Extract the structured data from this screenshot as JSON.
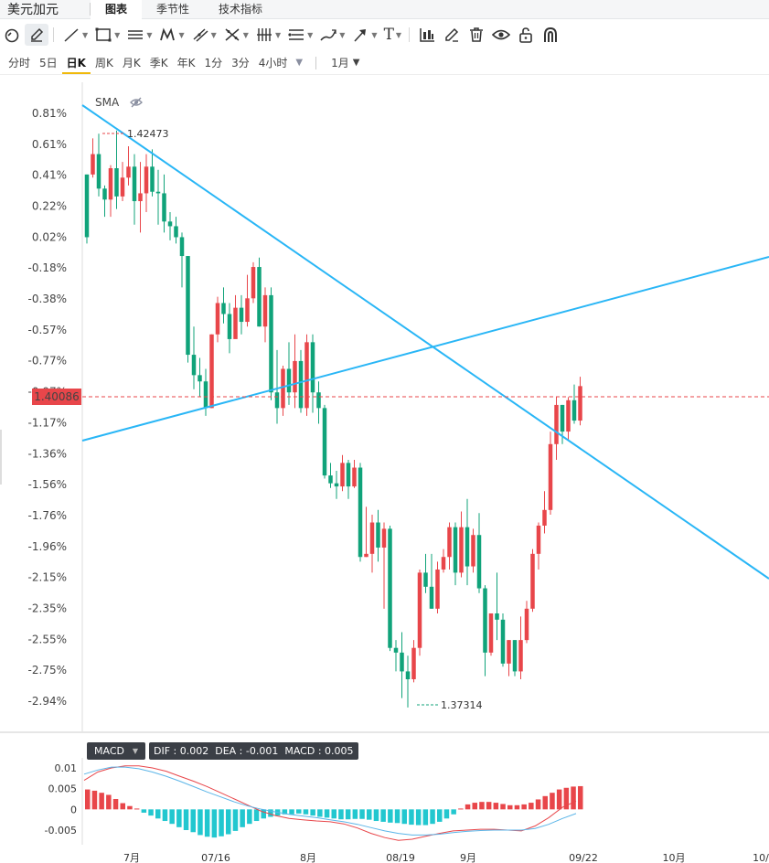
{
  "topbar": {
    "symbol": "美元加元",
    "tabs": [
      {
        "label": "图表",
        "active": true
      },
      {
        "label": "季节性",
        "active": false
      },
      {
        "label": "技术指标",
        "active": false
      }
    ]
  },
  "toolbar": {
    "tools": [
      "magnet-icon",
      "pencil-icon",
      "trend-line-icon",
      "rectangle-icon",
      "horizontal-lines-icon",
      "pattern-icon",
      "channel-icon",
      "fib-icon",
      "vertical-lines-icon",
      "parallel-lines-icon",
      "brush-icon",
      "arrow-icon",
      "text-icon",
      "chart-settings-icon",
      "edit-icon",
      "trash-icon",
      "eye-icon",
      "lock-icon",
      "magnet-u-icon"
    ],
    "text_tool_label": "T"
  },
  "periods": {
    "items": [
      {
        "label": "分时",
        "active": false
      },
      {
        "label": "5日",
        "active": false
      },
      {
        "label": "日K",
        "active": true
      },
      {
        "label": "周K",
        "active": false
      },
      {
        "label": "月K",
        "active": false
      },
      {
        "label": "季K",
        "active": false
      },
      {
        "label": "年K",
        "active": false
      },
      {
        "label": "1分",
        "active": false
      },
      {
        "label": "3分",
        "active": false
      },
      {
        "label": "4小时",
        "active": false
      }
    ],
    "more_caret": "▼",
    "range_label": "1月",
    "range_caret": "▼"
  },
  "chart_data": {
    "type": "candlestick",
    "indicator_label": "SMA",
    "y_ticks": [
      "0.81%",
      "0.61%",
      "0.41%",
      "0.22%",
      "0.02%",
      "-0.18%",
      "-0.38%",
      "-0.57%",
      "-0.77%",
      "-0.97%",
      "-1.17%",
      "-1.36%",
      "-1.56%",
      "-1.76%",
      "-1.96%",
      "-2.15%",
      "-2.35%",
      "-2.55%",
      "-2.75%",
      "-2.94%"
    ],
    "x_ticks": [
      "7月",
      "07/16",
      "8月",
      "08/19",
      "9月",
      "09/22",
      "10月",
      "10/"
    ],
    "current_price": "1.40086",
    "high_label": "1.42473",
    "low_label": "1.37314",
    "colors": {
      "up": "#e8464a",
      "down": "#10a37a",
      "trendline": "#29b6f6",
      "price_line": "#e8464a"
    },
    "candles": [
      [
        0.42,
        0.02,
        0.42,
        -0.02
      ],
      [
        0.42,
        0.55,
        0.65,
        0.4
      ],
      [
        0.55,
        0.33,
        0.68,
        0.28
      ],
      [
        0.33,
        0.26,
        0.35,
        0.15
      ],
      [
        0.26,
        0.46,
        0.48,
        0.15
      ],
      [
        0.46,
        0.28,
        0.7,
        0.2
      ],
      [
        0.28,
        0.4,
        0.5,
        0.25
      ],
      [
        0.4,
        0.47,
        0.6,
        0.35
      ],
      [
        0.47,
        0.25,
        0.55,
        0.1
      ],
      [
        0.25,
        0.3,
        0.5,
        0.05
      ],
      [
        0.3,
        0.47,
        0.55,
        0.18
      ],
      [
        0.47,
        0.31,
        0.58,
        0.28
      ],
      [
        0.31,
        0.3,
        0.45,
        0.1
      ],
      [
        0.3,
        0.12,
        0.42,
        0.05
      ],
      [
        0.12,
        0.09,
        0.18,
        0.0
      ],
      [
        0.09,
        0.02,
        0.15,
        -0.02
      ],
      [
        0.02,
        -0.1,
        0.05,
        -0.3
      ],
      [
        -0.1,
        -0.73,
        -0.1,
        -0.78
      ],
      [
        -0.73,
        -0.86,
        -0.55,
        -0.95
      ],
      [
        -0.86,
        -0.9,
        -0.75,
        -1.0
      ],
      [
        -0.9,
        -1.07,
        -0.82,
        -1.12
      ],
      [
        -1.07,
        -0.6,
        -0.6,
        -1.07
      ],
      [
        -0.6,
        -0.4,
        -0.36,
        -0.65
      ],
      [
        -0.4,
        -0.47,
        -0.3,
        -0.53
      ],
      [
        -0.47,
        -0.63,
        -0.4,
        -0.72
      ],
      [
        -0.63,
        -0.43,
        -0.35,
        -0.6
      ],
      [
        -0.43,
        -0.52,
        -0.35,
        -0.6
      ],
      [
        -0.52,
        -0.37,
        -0.22,
        -0.55
      ],
      [
        -0.37,
        -0.17,
        -0.14,
        -0.4
      ],
      [
        -0.17,
        -0.55,
        -0.11,
        -0.55
      ],
      [
        -0.55,
        -0.35,
        -0.3,
        -0.65
      ],
      [
        -0.35,
        -0.97,
        -0.3,
        -1.02
      ],
      [
        -0.97,
        -1.07,
        -0.7,
        -1.17
      ],
      [
        -1.07,
        -0.82,
        -0.8,
        -1.12
      ],
      [
        -0.82,
        -0.97,
        -0.65,
        -1.05
      ],
      [
        -0.97,
        -0.77,
        -0.6,
        -1.07
      ],
      [
        -0.77,
        -1.07,
        -0.7,
        -1.1
      ],
      [
        -1.07,
        -0.65,
        -0.6,
        -1.12
      ],
      [
        -0.65,
        -0.97,
        -0.6,
        -1.1
      ],
      [
        -0.97,
        -1.07,
        -0.9,
        -1.17
      ],
      [
        -1.07,
        -1.5,
        -1.05,
        -1.52
      ],
      [
        -1.5,
        -1.55,
        -1.42,
        -1.58
      ],
      [
        -1.55,
        -1.57,
        -1.47,
        -1.65
      ],
      [
        -1.57,
        -1.42,
        -1.37,
        -1.6
      ],
      [
        -1.42,
        -1.57,
        -1.4,
        -1.65
      ],
      [
        -1.57,
        -1.45,
        -1.4,
        -1.58
      ],
      [
        -1.45,
        -2.02,
        -1.42,
        -2.05
      ],
      [
        -2.02,
        -2.0,
        -1.7,
        -2.02
      ],
      [
        -2.0,
        -1.8,
        -1.75,
        -2.12
      ],
      [
        -1.8,
        -1.96,
        -1.72,
        -2.05
      ],
      [
        -1.96,
        -1.84,
        -1.8,
        -2.35
      ],
      [
        -1.84,
        -2.6,
        -1.82,
        -2.62
      ],
      [
        -2.6,
        -2.63,
        -2.55,
        -2.75
      ],
      [
        -2.63,
        -2.75,
        -2.5,
        -2.92
      ],
      [
        -2.75,
        -2.8,
        -2.65,
        -2.98
      ],
      [
        -2.8,
        -2.6,
        -2.55,
        -2.82
      ],
      [
        -2.6,
        -2.12,
        -2.1,
        -2.65
      ],
      [
        -2.12,
        -2.21,
        -2.0,
        -2.25
      ],
      [
        -2.21,
        -2.35,
        -2.0,
        -2.35
      ],
      [
        -2.35,
        -2.1,
        -2.05,
        -2.38
      ],
      [
        -2.1,
        -2.02,
        -1.97,
        -2.12
      ],
      [
        -2.02,
        -1.83,
        -1.8,
        -2.1
      ],
      [
        -1.83,
        -2.12,
        -1.8,
        -2.2
      ],
      [
        -2.12,
        -1.83,
        -1.73,
        -2.15
      ],
      [
        -1.83,
        -2.08,
        -1.65,
        -2.2
      ],
      [
        -2.08,
        -1.88,
        -1.84,
        -2.12
      ],
      [
        -1.88,
        -2.22,
        -1.74,
        -2.25
      ],
      [
        -2.22,
        -2.63,
        -2.2,
        -2.78
      ],
      [
        -2.63,
        -2.38,
        -2.38,
        -2.65
      ],
      [
        -2.38,
        -2.42,
        -2.12,
        -2.55
      ],
      [
        -2.42,
        -2.7,
        -2.38,
        -2.72
      ],
      [
        -2.7,
        -2.55,
        -2.55,
        -2.78
      ],
      [
        -2.55,
        -2.75,
        -2.55,
        -2.78
      ],
      [
        -2.75,
        -2.55,
        -2.4,
        -2.8
      ],
      [
        -2.55,
        -2.35,
        -2.3,
        -2.57
      ],
      [
        -2.35,
        -2.0,
        -1.97,
        -2.37
      ],
      [
        -2.0,
        -1.82,
        -1.8,
        -2.1
      ],
      [
        -1.82,
        -1.72,
        -1.6,
        -1.87
      ],
      [
        -1.72,
        -1.3,
        -1.22,
        -1.75
      ],
      [
        -1.3,
        -1.05,
        -1.0,
        -1.4
      ],
      [
        -1.05,
        -1.22,
        -1.05,
        -1.3
      ],
      [
        -1.22,
        -1.02,
        -1.0,
        -1.27
      ],
      [
        -1.02,
        -1.15,
        -0.92,
        -1.17
      ],
      [
        -1.15,
        -0.93,
        -0.87,
        -1.18
      ]
    ],
    "macd": {
      "dif_label": "DIF : 0.002",
      "dea_label": "DEA : -0.001",
      "macd_label": "MACD : 0.005",
      "y_ticks": [
        "0.01",
        "0.005",
        "0",
        "-0.005"
      ],
      "indicator_name": "MACD",
      "hist": [
        0.0048,
        0.0045,
        0.004,
        0.0035,
        0.0025,
        0.0015,
        0.0008,
        0.0002,
        -0.0008,
        -0.0015,
        -0.0022,
        -0.0028,
        -0.0035,
        -0.0043,
        -0.005,
        -0.0055,
        -0.0062,
        -0.0066,
        -0.0068,
        -0.0065,
        -0.006,
        -0.0052,
        -0.0043,
        -0.0035,
        -0.0028,
        -0.0022,
        -0.0018,
        -0.0015,
        -0.0012,
        -0.0012,
        -0.001,
        -0.0012,
        -0.0015,
        -0.0018,
        -0.002,
        -0.0022,
        -0.0024,
        -0.0024,
        -0.0023,
        -0.0023,
        -0.0025,
        -0.0028,
        -0.003,
        -0.0032,
        -0.0033,
        -0.0035,
        -0.0037,
        -0.0038,
        -0.0038,
        -0.0035,
        -0.003,
        -0.0022,
        -0.0012,
        0.0002,
        0.0012,
        0.0016,
        0.0018,
        0.0018,
        0.0016,
        0.0013,
        0.001,
        0.001,
        0.0012,
        0.0016,
        0.0024,
        0.0032,
        0.004,
        0.0048,
        0.0052,
        0.0055,
        0.0056
      ],
      "dif": [
        0.007,
        0.009,
        0.01,
        0.0105,
        0.0105,
        0.01,
        0.0092,
        0.008,
        0.0068,
        0.0055,
        0.004,
        0.0025,
        0.001,
        -0.0005,
        -0.0015,
        -0.0022,
        -0.0025,
        -0.0028,
        -0.003,
        -0.0035,
        -0.0045,
        -0.0058,
        -0.0068,
        -0.0075,
        -0.0072,
        -0.0065,
        -0.0058,
        -0.0052,
        -0.005,
        -0.0048,
        -0.0048,
        -0.005,
        -0.0052,
        -0.004,
        -0.002,
        0.0005,
        0.002
      ],
      "dea": [
        0.0085,
        0.0095,
        0.0102,
        0.0102,
        0.0098,
        0.009,
        0.008,
        0.0068,
        0.0055,
        0.0042,
        0.003,
        0.0018,
        0.0008,
        0.0,
        -0.0006,
        -0.0012,
        -0.0016,
        -0.002,
        -0.0025,
        -0.003,
        -0.0036,
        -0.0044,
        -0.0052,
        -0.0058,
        -0.0062,
        -0.0062,
        -0.006,
        -0.0056,
        -0.0053,
        -0.0051,
        -0.005,
        -0.005,
        -0.005,
        -0.0046,
        -0.0036,
        -0.0022,
        -0.001
      ]
    }
  }
}
